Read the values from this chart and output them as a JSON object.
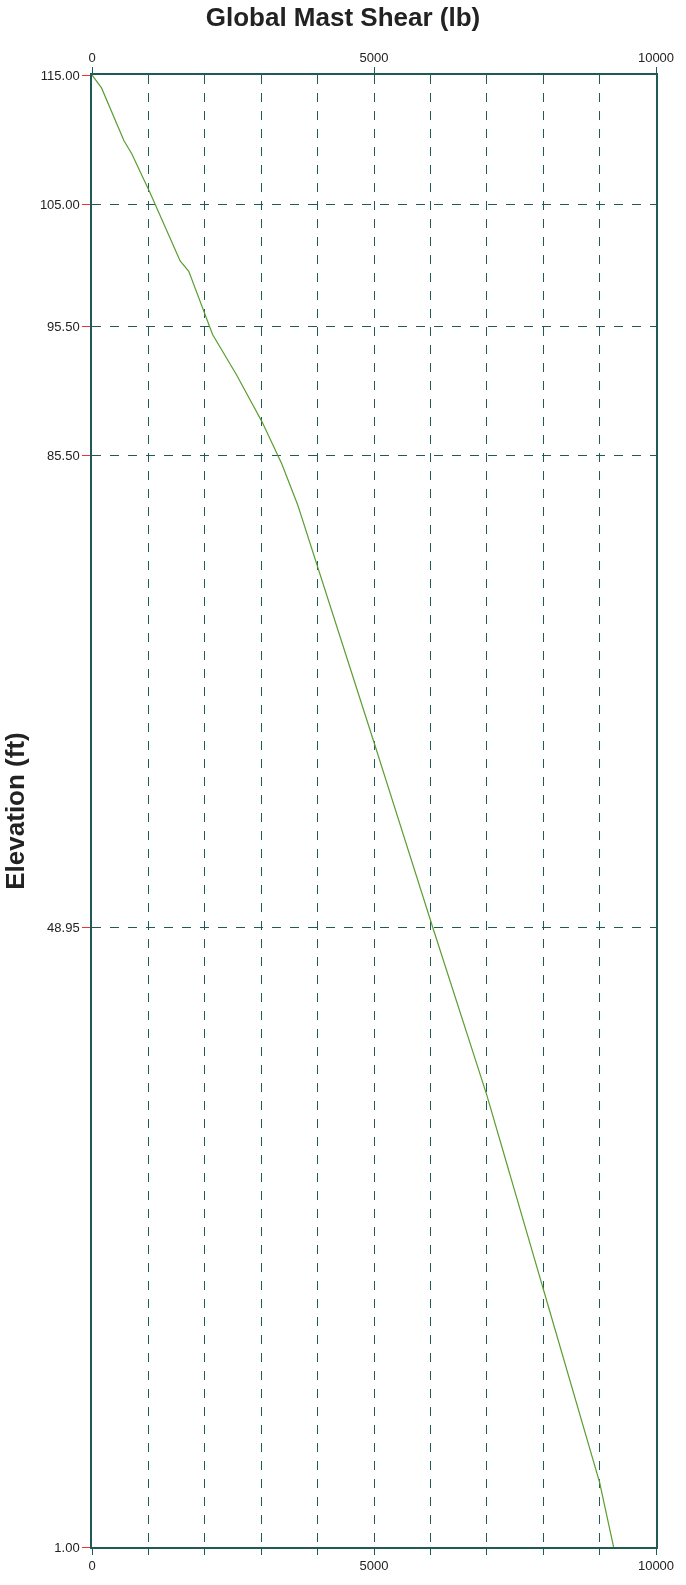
{
  "chart_data": {
    "type": "line",
    "title": "Global Mast Shear (lb)",
    "ylabel": "Elevation (ft)",
    "series": [
      {
        "color": "#5a9e32",
        "x": [
          0,
          169,
          567,
          705,
          1027,
          1563,
          1716,
          2138,
          2559,
          3019,
          3364,
          3648,
          4994,
          6048,
          7000,
          8000,
          9000,
          9248
        ],
        "values": [
          115,
          114.0,
          109.9,
          108.9,
          105.9,
          100.6,
          99.8,
          94.9,
          91.8,
          88.1,
          84.9,
          81.7,
          63.4,
          48.9,
          36.0,
          21.0,
          6.0,
          1.0
        ]
      }
    ],
    "xlim": [
      0,
      10000
    ],
    "xticks": [
      0,
      {
        "value": 1000,
        "label": null
      },
      {
        "value": 2000,
        "label": null
      },
      {
        "value": 3000,
        "label": null
      },
      {
        "value": 4000,
        "label": null
      },
      5000,
      {
        "value": 6000,
        "label": null
      },
      {
        "value": 7000,
        "label": null
      },
      {
        "value": 8000,
        "label": null
      },
      {
        "value": 9000,
        "label": null
      },
      10000
    ],
    "x2lim": [
      0,
      10000
    ],
    "x2ticks": [
      0,
      5000,
      10000
    ],
    "ylim": [
      1,
      115
    ],
    "yticks": [
      {
        "value": 115,
        "label": "115.00"
      },
      {
        "value": 105,
        "label": "105.00"
      },
      {
        "value": 95.5,
        "label": "95.50"
      },
      {
        "value": 85.5,
        "label": "85.50"
      },
      {
        "value": 48.95,
        "label": "48.95"
      },
      {
        "value": 1,
        "label": "1.00"
      }
    ],
    "grid": true,
    "marker": "none",
    "line_style": "solid"
  }
}
